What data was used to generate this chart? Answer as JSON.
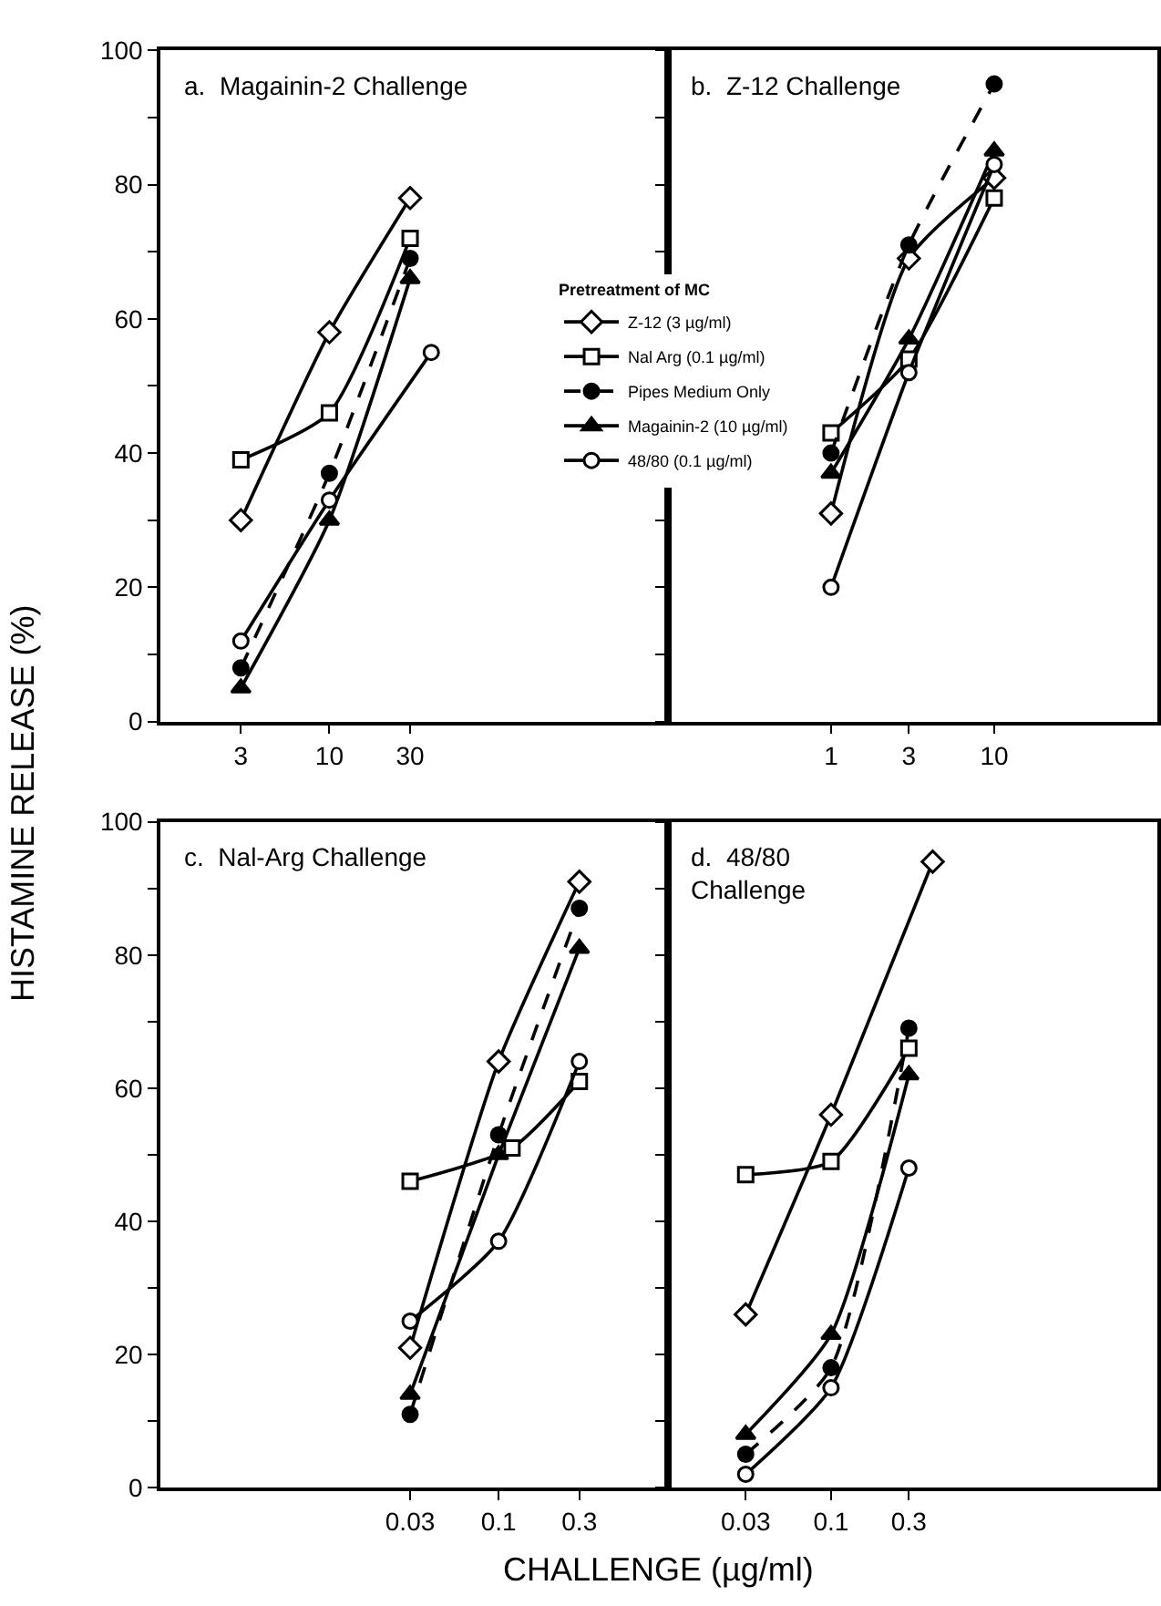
{
  "chart_data": [
    {
      "type": "line",
      "title": "a.  Magainin-2 Challenge",
      "ylabel": "HISTAMINE RELEASE (%)",
      "x": [
        3,
        10,
        30
      ],
      "xlim": [
        1,
        1000
      ],
      "xticks": [
        3,
        10,
        30
      ],
      "log": "x",
      "ylim": [
        0,
        100
      ],
      "yticks": [
        0,
        {
          "value": 10,
          "label": null
        },
        20,
        {
          "value": 30,
          "label": null
        },
        40,
        {
          "value": 50,
          "label": null
        },
        60,
        {
          "value": 70,
          "label": null
        },
        80,
        {
          "value": 90,
          "label": null
        },
        100
      ],
      "grid": false,
      "legend": false,
      "series": [
        {
          "color": "#000000",
          "colors": [
            "#ffffff",
            "#ffffff",
            "#ffffff"
          ],
          "marker": "diamond",
          "line_style": "solid",
          "values": [
            30,
            58,
            78
          ]
        },
        {
          "color": "#000000",
          "colors": [
            "#ffffff",
            "#ffffff",
            "#ffffff"
          ],
          "marker": "square",
          "line_style": "solid",
          "values": [
            39,
            46,
            72
          ]
        },
        {
          "color": "#000000",
          "colors": [
            "#000000",
            "#000000",
            "#000000"
          ],
          "marker": "circle",
          "line_style": "dashed",
          "values": [
            8,
            37,
            69
          ]
        },
        {
          "color": "#000000",
          "colors": [
            "#000000",
            "#000000",
            "#000000"
          ],
          "marker": "triangle",
          "line_style": "solid",
          "values": [
            5,
            30,
            66
          ]
        },
        {
          "color": "#000000",
          "colors": [
            "#ffffff",
            "#ffffff",
            "#ffffff"
          ],
          "marker": "circle",
          "line_style": "solid",
          "x": [
            3,
            10,
            40
          ],
          "values": [
            12,
            33,
            55
          ]
        }
      ]
    },
    {
      "type": "line",
      "title": "b.  Z-12 Challenge",
      "legend_title": "Pretreatment of MC",
      "x": [
        1,
        3,
        10
      ],
      "xlim": [
        0.1,
        100
      ],
      "xticks": [
        1,
        3,
        10
      ],
      "log": "x",
      "ylim": [
        0,
        100
      ],
      "yticks": [
        0,
        {
          "value": 10,
          "label": null
        },
        20,
        {
          "value": 30,
          "label": null
        },
        40,
        {
          "value": 50,
          "label": null
        },
        60,
        {
          "value": 70,
          "label": null
        },
        80,
        {
          "value": 90,
          "label": null
        },
        100
      ],
      "tick_labels": "x",
      "grid": false,
      "legend": "left",
      "series": [
        {
          "name": "Z-12 (3 µg/ml)",
          "color": "#000000",
          "colors": [
            "#ffffff",
            "#ffffff",
            "#ffffff"
          ],
          "marker": "diamond",
          "line_style": "solid",
          "values": [
            31,
            69,
            81
          ]
        },
        {
          "name": "Nal Arg (0.1 µg/ml)",
          "color": "#000000",
          "colors": [
            "#ffffff",
            "#ffffff",
            "#ffffff"
          ],
          "marker": "square",
          "line_style": "solid",
          "values": [
            43,
            54,
            78
          ]
        },
        {
          "name": "Pipes Medium Only",
          "color": "#000000",
          "colors": [
            "#000000",
            "#000000",
            "#000000"
          ],
          "marker": "circle",
          "line_style": "dashed",
          "values": [
            40,
            71,
            95
          ]
        },
        {
          "name": "Magainin-2 (10 µg/ml)",
          "color": "#000000",
          "colors": [
            "#000000",
            "#000000",
            "#000000"
          ],
          "marker": "triangle",
          "line_style": "solid",
          "values": [
            37,
            57,
            85
          ]
        },
        {
          "name": "48/80 (0.1 µg/ml)",
          "color": "#000000",
          "colors": [
            "#ffffff",
            "#ffffff",
            "#ffffff"
          ],
          "marker": "circle",
          "line_style": "solid",
          "values": [
            20,
            52,
            83
          ]
        }
      ]
    },
    {
      "type": "line",
      "title": "c.  Nal-Arg Challenge",
      "xlabel": "CHALLENGE (µg/ml)",
      "x": [
        0.03,
        0.1,
        0.3
      ],
      "xlim": [
        0.001,
        1
      ],
      "xticks": [
        0.03,
        0.1,
        0.3
      ],
      "log": "x",
      "ylim": [
        0,
        100
      ],
      "yticks": [
        0,
        {
          "value": 10,
          "label": null
        },
        20,
        {
          "value": 30,
          "label": null
        },
        40,
        {
          "value": 50,
          "label": null
        },
        60,
        {
          "value": 70,
          "label": null
        },
        80,
        {
          "value": 90,
          "label": null
        },
        100
      ],
      "grid": false,
      "legend": false,
      "series": [
        {
          "color": "#000000",
          "colors": [
            "#ffffff",
            "#ffffff",
            "#ffffff"
          ],
          "marker": "diamond",
          "line_style": "solid",
          "values": [
            21,
            64,
            91
          ]
        },
        {
          "color": "#000000",
          "colors": [
            "#ffffff",
            "#ffffff",
            "#ffffff"
          ],
          "marker": "square",
          "line_style": "solid",
          "x": [
            0.03,
            0.12,
            0.3
          ],
          "values": [
            46,
            51,
            61
          ]
        },
        {
          "color": "#000000",
          "colors": [
            "#000000",
            "#000000",
            "#000000"
          ],
          "marker": "circle",
          "line_style": "dashed",
          "values": [
            11,
            53,
            87
          ]
        },
        {
          "color": "#000000",
          "colors": [
            "#000000",
            "#000000",
            "#000000"
          ],
          "marker": "triangle",
          "line_style": "solid",
          "values": [
            14,
            50,
            81
          ]
        },
        {
          "color": "#000000",
          "colors": [
            "#ffffff",
            "#ffffff",
            "#ffffff"
          ],
          "marker": "circle",
          "line_style": "solid",
          "values": [
            25,
            37,
            64
          ]
        }
      ]
    },
    {
      "type": "line",
      "title": "d.  48/80\nChallenge",
      "x": [
        0.03,
        0.1,
        0.3
      ],
      "xlim": [
        0.01,
        10
      ],
      "xticks": [
        0.03,
        0.1,
        0.3
      ],
      "log": "x",
      "ylim": [
        0,
        100
      ],
      "yticks": [
        0,
        {
          "value": 10,
          "label": null
        },
        20,
        {
          "value": 30,
          "label": null
        },
        40,
        {
          "value": 50,
          "label": null
        },
        60,
        {
          "value": 70,
          "label": null
        },
        80,
        {
          "value": 90,
          "label": null
        },
        100
      ],
      "tick_labels": "x",
      "grid": false,
      "legend": false,
      "series": [
        {
          "color": "#000000",
          "colors": [
            "#ffffff",
            "#ffffff",
            "#ffffff"
          ],
          "marker": "diamond",
          "line_style": "solid",
          "x": [
            0.03,
            0.1,
            0.42
          ],
          "values": [
            26,
            56,
            94
          ]
        },
        {
          "color": "#000000",
          "colors": [
            "#ffffff",
            "#ffffff",
            "#ffffff"
          ],
          "marker": "square",
          "line_style": "solid",
          "values": [
            47,
            49,
            66
          ]
        },
        {
          "color": "#000000",
          "colors": [
            "#000000",
            "#000000",
            "#000000"
          ],
          "marker": "circle",
          "line_style": "dashed",
          "values": [
            5,
            18,
            69
          ]
        },
        {
          "color": "#000000",
          "colors": [
            "#000000",
            "#000000",
            "#000000"
          ],
          "marker": "triangle",
          "line_style": "solid",
          "values": [
            8,
            23,
            62
          ]
        },
        {
          "color": "#000000",
          "colors": [
            "#ffffff",
            "#ffffff",
            "#ffffff"
          ],
          "marker": "circle",
          "line_style": "solid",
          "values": [
            2,
            15,
            48
          ]
        }
      ]
    }
  ]
}
